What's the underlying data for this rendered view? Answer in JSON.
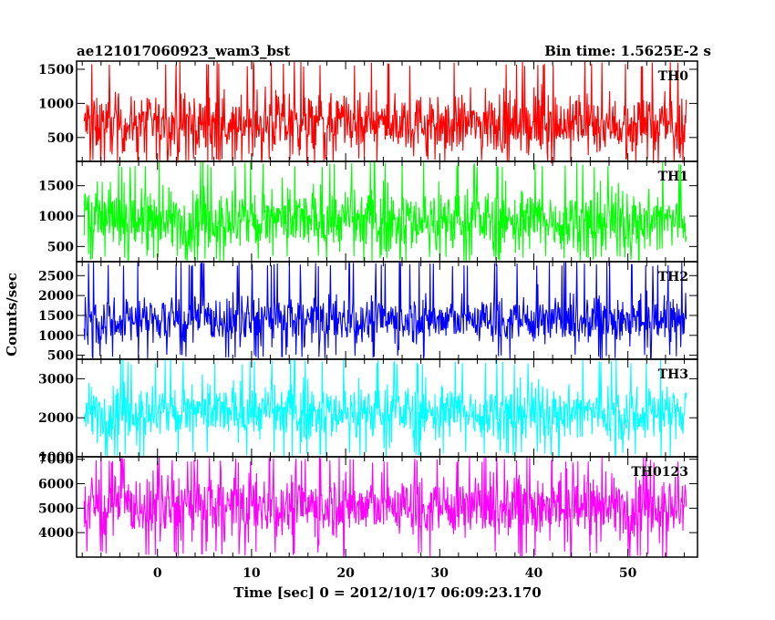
{
  "chart_data": {
    "type": "line",
    "title_left": "ae121017060923_wam3_bst",
    "title_right": "Bin time: 1.5625E-2 s",
    "xlabel": "Time [sec] 0 = 2012/10/17 06:09:23.170",
    "ylabel": "Counts/sec",
    "xlim": [
      -8.6,
      57.4
    ],
    "data_x_range": [
      -7.8,
      56.2
    ],
    "x_ticks": [
      "0",
      "10",
      "20",
      "30",
      "40",
      "50"
    ],
    "panels": [
      {
        "name": "TH0",
        "color": "#ff0000",
        "ylim": [
          150,
          1620
        ],
        "y_ticks": [
          "500",
          "1000",
          "1500"
        ],
        "baseline": 700,
        "spread": 270,
        "min": 120,
        "max": 1620
      },
      {
        "name": "TH1",
        "color": "#00ff00",
        "ylim": [
          250,
          1900
        ],
        "y_ticks": [
          "500",
          "1000",
          "1500"
        ],
        "baseline": 930,
        "spread": 330,
        "min": 250,
        "max": 1900
      },
      {
        "name": "TH2",
        "color": "#0000ff",
        "ylim": [
          400,
          2850
        ],
        "y_ticks": [
          "500",
          "1000",
          "1500",
          "2000",
          "2500"
        ],
        "baseline": 1400,
        "spread": 380,
        "min": 400,
        "max": 2850
      },
      {
        "name": "TH3",
        "color": "#00ffff",
        "ylim": [
          1000,
          3500
        ],
        "y_ticks": [
          "1000",
          "2000",
          "3000"
        ],
        "baseline": 2150,
        "spread": 450,
        "min": 1000,
        "max": 3500
      },
      {
        "name": "TH0123",
        "color": "#ff00ff",
        "ylim": [
          3000,
          7100
        ],
        "y_ticks": [
          "4000",
          "5000",
          "6000",
          "7000"
        ],
        "baseline": 5100,
        "spread": 800,
        "min": 3000,
        "max": 7100
      }
    ]
  }
}
